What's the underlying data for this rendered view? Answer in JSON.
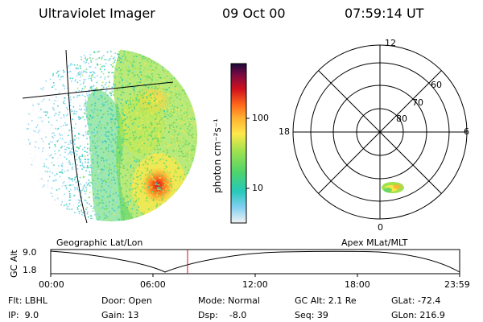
{
  "header": {
    "instrument": "Ultraviolet Imager",
    "date": "09 Oct 00",
    "time": "07:59:14 UT"
  },
  "colorbar": {
    "unit_label": "photon cm⁻²s⁻¹",
    "ticks": [
      "100",
      "10"
    ],
    "colors": [
      "#f2f2f2",
      "#7fd0f0",
      "#27c9b9",
      "#4fd46a",
      "#9fe24f",
      "#ffe84a",
      "#ffb030",
      "#ff6a1a",
      "#d0101e",
      "#7a0a42",
      "#1a0a3a"
    ]
  },
  "polar_plot": {
    "mlt_labels": {
      "top": "12",
      "left": "18",
      "right": "6",
      "bottom": "0"
    },
    "lat_labels": [
      "60",
      "70",
      "80"
    ]
  },
  "panel_labels": {
    "left": "Geographic Lat/Lon",
    "right": "Apex MLat/MLT"
  },
  "altitude_plot": {
    "axis_label": "GC Alt",
    "y_ticks": [
      "9.0",
      "1.8"
    ],
    "x_ticks": [
      "00:00",
      "06:00",
      "12:00",
      "18:00",
      "23:59"
    ],
    "marker_time": "07:59"
  },
  "status": {
    "flt": "Flt: LBHL",
    "ip": "IP:  9.0",
    "door": "Door: Open",
    "gain": "Gain: 13",
    "mode": "Mode: Normal",
    "dsp": "Dsp:    -8.0",
    "gc_alt": "GC Alt: 2.1 Re",
    "seq": "Seq: 39",
    "glat": "GLat: -72.4",
    "glon": "GLon: 216.9"
  }
}
